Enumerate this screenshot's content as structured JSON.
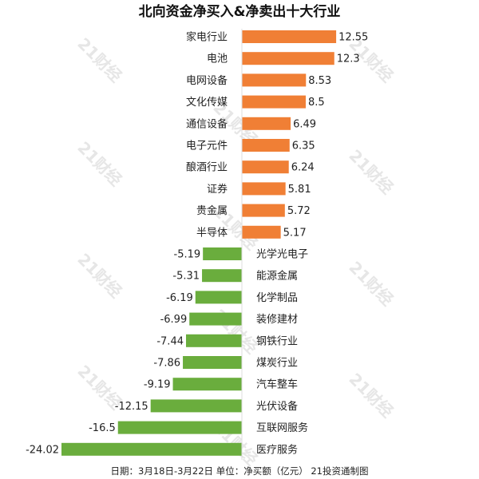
{
  "chart_data": {
    "type": "bar",
    "orientation": "horizontal",
    "title": "北向资金净买入&净卖出十大行业",
    "categories": [
      "家电行业",
      "电池",
      "电网设备",
      "文化传媒",
      "通信设备",
      "电子元件",
      "酿酒行业",
      "证券",
      "贵金属",
      "半导体",
      "光学光电子",
      "能源金属",
      "化学制品",
      "装修建材",
      "钢铁行业",
      "煤炭行业",
      "汽车整车",
      "光伏设备",
      "互联网服务",
      "医疗服务"
    ],
    "values": [
      12.55,
      12.3,
      8.53,
      8.5,
      6.49,
      6.35,
      6.24,
      5.81,
      5.72,
      5.17,
      -5.19,
      -5.31,
      -6.19,
      -6.99,
      -7.44,
      -7.86,
      -9.19,
      -12.15,
      -16.5,
      -24.02
    ],
    "value_labels": [
      "12.55",
      "12.3",
      "8.53",
      "8.5",
      "6.49",
      "6.35",
      "6.24",
      "5.81",
      "5.72",
      "5.17",
      "-5.19",
      "-5.31",
      "-6.19",
      "-6.99",
      "-7.44",
      "-7.86",
      "-9.19",
      "-12.15",
      "-16.5",
      "-24.02"
    ],
    "positive_color": "#f07f35",
    "negative_color": "#6aad3d",
    "grid": false,
    "legend": "none"
  },
  "footnote": "日期：3月18日-3月22日 单位：净买额（亿元） 21投资通制图",
  "watermark": "21财经"
}
